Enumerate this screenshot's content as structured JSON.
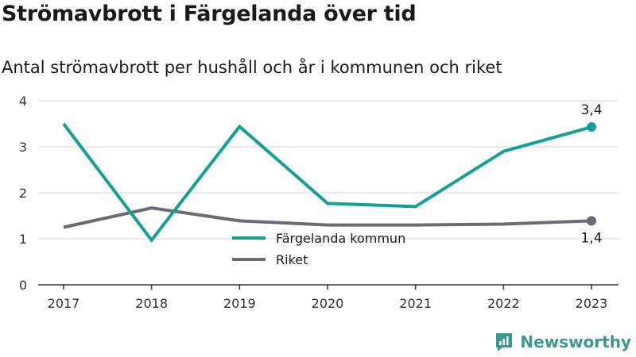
{
  "title": "Strömavbrott i Färgelanda över tid",
  "subtitle": "Antal strömavbrott per hushåll och år i kommunen och riket",
  "brand": "Newsworthy",
  "colors": {
    "kommun": "#14a096",
    "riket": "#6b6b72",
    "grid": "#dcdcdc",
    "axis": "#333333",
    "brand": "#3a9a8f"
  },
  "chart_data": {
    "type": "line",
    "title": "Strömavbrott i Färgelanda över tid",
    "subtitle": "Antal strömavbrott per hushåll och år i kommunen och riket",
    "x": [
      "2017",
      "2018",
      "2019",
      "2020",
      "2021",
      "2022",
      "2023"
    ],
    "ylim": [
      0,
      4
    ],
    "yticks": [
      "0",
      "1",
      "2",
      "3",
      "4"
    ],
    "grid": true,
    "legend_position": "center",
    "series": [
      {
        "name": "Färgelanda kommun",
        "values": [
          3.5,
          0.97,
          3.44,
          1.77,
          1.7,
          2.9,
          3.43
        ],
        "end_label": "3,4"
      },
      {
        "name": "Riket",
        "values": [
          1.25,
          1.67,
          1.39,
          1.3,
          1.3,
          1.32,
          1.39
        ],
        "end_label": "1,4"
      }
    ]
  }
}
